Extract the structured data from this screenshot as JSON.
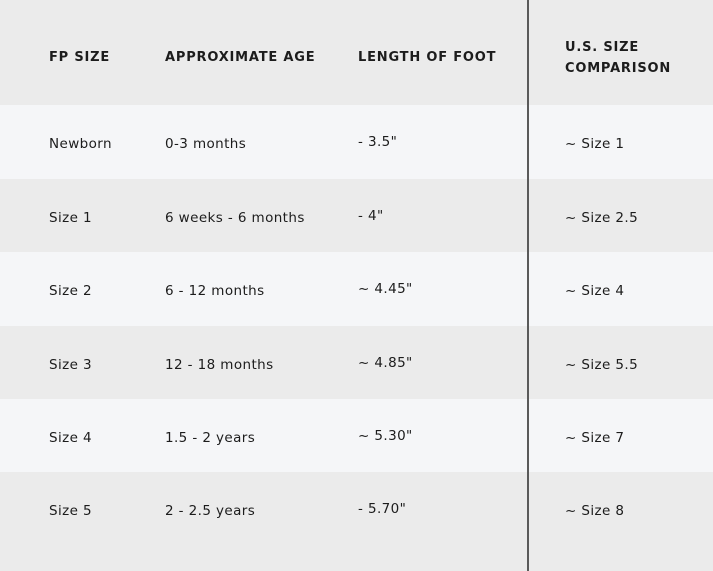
{
  "headers": [
    "FP SIZE",
    "APPROXIMATE AGE",
    "LENGTH OF FOOT",
    "U.S. SIZE",
    "COMPARISON"
  ],
  "rows": [
    [
      "Newborn",
      "0-3 months",
      "- 3.5\"",
      "~ Size 1"
    ],
    [
      "Size 1",
      "6 weeks - 6 months",
      "- 4\"",
      "~ Size 2.5"
    ],
    [
      "Size 2",
      "6 - 12 months",
      "~ 4.45\"",
      "~ Size 4"
    ],
    [
      "Size 3",
      "12 - 18 months",
      "~ 4.85\"",
      "~ Size 5.5"
    ],
    [
      "Size 4",
      "1.5 - 2 years",
      "~ 5.30\"",
      "~ Size 7"
    ],
    [
      "Size 5",
      "2 - 2.5 years",
      "- 5.70\"",
      "~ Size 8"
    ]
  ],
  "colors": {
    "header_bg": "#ebebeb",
    "row_light": "#f5f6f8",
    "row_dark": "#ebebeb",
    "divider": "#5a5a5a",
    "text": "#1c1c1c"
  }
}
